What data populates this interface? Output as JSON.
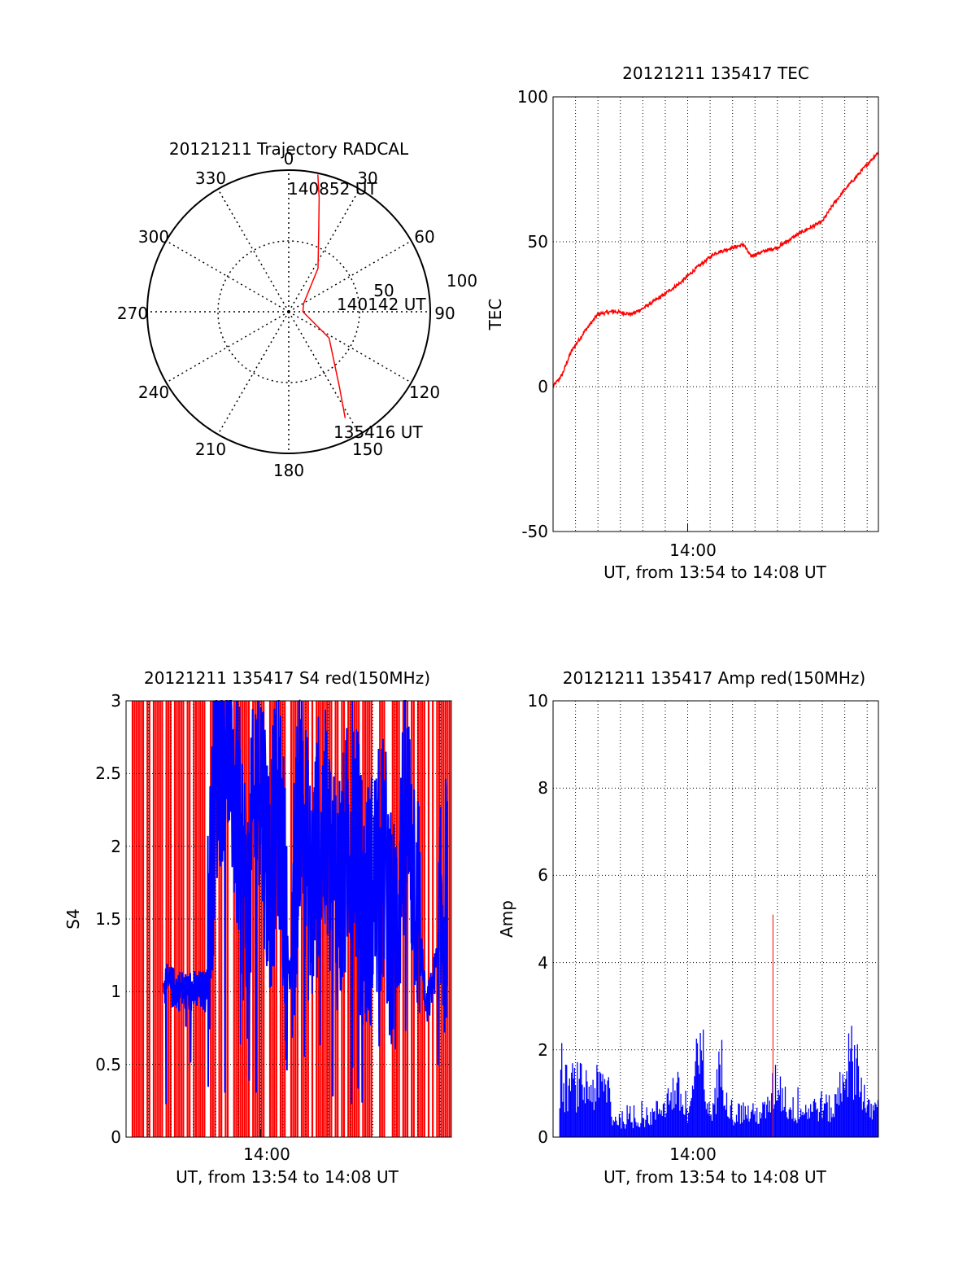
{
  "colors": {
    "red": "#ff0000",
    "blue": "#0000ff",
    "black": "#000000"
  },
  "chart_data": [
    {
      "id": "polar",
      "type": "scatter",
      "title": "20121211 Trajectory RADCAL",
      "azimuth_labels": [
        "0",
        "30",
        "60",
        "90",
        "120",
        "150",
        "180",
        "210",
        "240",
        "270",
        "300",
        "330"
      ],
      "radial_labels": [
        "50",
        "100"
      ],
      "trajectory": {
        "points": [
          [
            12,
            99
          ],
          [
            15,
            83
          ],
          [
            20,
            62
          ],
          [
            34,
            37
          ],
          [
            61,
            12
          ],
          [
            90,
            10
          ],
          [
            123,
            34
          ],
          [
            146,
            64
          ],
          [
            152,
            85
          ]
        ],
        "labels": {
          "start": "135416 UT",
          "mid": "140142 UT",
          "end": "140852 UT"
        }
      }
    },
    {
      "id": "tec",
      "type": "line",
      "title": "20121211 135417 TEC",
      "xlabel": "UT, from 13:54 to 14:08 UT",
      "ylabel": "TEC",
      "ylim": [
        -50,
        100
      ],
      "yticks": [
        "100",
        "50",
        "0",
        "-50"
      ],
      "xtick_label": "14:00",
      "x_range_min": [
        -6,
        8.5
      ],
      "series": [
        {
          "color": "red",
          "x": [
            -6,
            -5.6,
            -5.2,
            -4.6,
            -4,
            -3.3,
            -2.5,
            -2,
            -1.2,
            -0.3,
            0.4,
            1.2,
            2,
            2.5,
            2.8,
            3.5,
            4,
            5,
            6,
            6.5,
            7,
            8.5
          ],
          "y": [
            0,
            4,
            12,
            19,
            25,
            26,
            25,
            27,
            31,
            36,
            41,
            46,
            48,
            49,
            45,
            47,
            48,
            53,
            57,
            63,
            68,
            81
          ]
        }
      ]
    },
    {
      "id": "s4",
      "type": "line",
      "title": "20121211 135417 S4 red(150MHz)",
      "xlabel": "UT, from 13:54 to 14:08 UT",
      "ylabel": "S4",
      "ylim": [
        0,
        3
      ],
      "yticks": [
        "3",
        "2.5",
        "2",
        "1.5",
        "1",
        "0.5",
        "0"
      ],
      "xtick_label": "14:00",
      "x_range_min": [
        -5,
        8.5
      ],
      "series": [
        {
          "color": "red",
          "style": "dense spikes, mostly saturated",
          "value": 3
        },
        {
          "color": "blue",
          "x": [
            -5,
            -4,
            -3,
            -2.5,
            -2,
            -1.5,
            -1,
            -0.5,
            0,
            0.5,
            1,
            1.5,
            2,
            2.5,
            3,
            3.5,
            4,
            4.5,
            5,
            5.5,
            6,
            6.5,
            7,
            7.5,
            8,
            8.5
          ],
          "y": [
            1.05,
            1.0,
            1.0,
            2.6,
            2.9,
            2.2,
            1.5,
            2.7,
            1.8,
            2.3,
            1.0,
            2.5,
            1.6,
            2.2,
            1.8,
            1.7,
            2.3,
            1.5,
            1.7,
            1.9,
            1.3,
            2.3,
            1.8,
            0.85,
            1.2,
            1.7
          ]
        }
      ]
    },
    {
      "id": "amp",
      "type": "line",
      "title": "20121211 135417 Amp red(150MHz)",
      "xlabel": "UT, from 13:54 to 14:08 UT",
      "ylabel": "Amp",
      "ylim": [
        0,
        10
      ],
      "yticks": [
        "10",
        "8",
        "6",
        "4",
        "2",
        "0"
      ],
      "xtick_label": "14:00",
      "x_range_min": [
        -6,
        8.5
      ],
      "series": [
        {
          "color": "blue",
          "x": [
            -6,
            -5,
            -4,
            -3.5,
            -3.4,
            -2.5,
            -1.5,
            -1,
            -0.5,
            0,
            0.5,
            1,
            1.5,
            2,
            2.5,
            3,
            3.5,
            4,
            4.5,
            5,
            5.5,
            6,
            6.5,
            7,
            7.5,
            8,
            8.5
          ],
          "y": [
            1.5,
            1.6,
            1.5,
            1.6,
            0.6,
            0.5,
            0.7,
            1.1,
            1.5,
            0.6,
            2.5,
            0.6,
            2.2,
            0.7,
            0.8,
            0.7,
            0.8,
            1.8,
            0.9,
            0.8,
            0.9,
            1.0,
            0.8,
            2.2,
            2.5,
            0.8,
            0.9
          ]
        },
        {
          "color": "red",
          "x": [
            3.8
          ],
          "y": [
            5.1
          ]
        }
      ]
    }
  ]
}
